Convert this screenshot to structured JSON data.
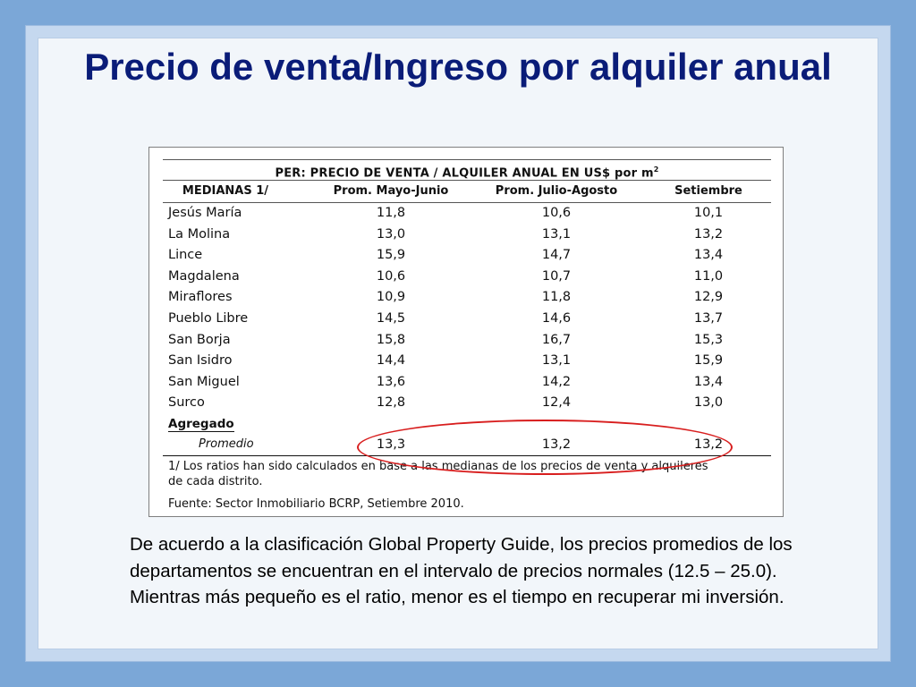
{
  "slide": {
    "title": "Precio de venta/Ingreso por alquiler anual",
    "body": "De acuerdo a la clasificación Global Property Guide, los precios promedios de los departamentos se encuentran en el intervalo de precios normales (12.5 – 25.0). Mientras más pequeño es el ratio, menor es el tiempo en recuperar mi inversión."
  },
  "table": {
    "title": "PER: PRECIO DE VENTA / ALQUILER ANUAL EN US$ por m",
    "title_superscript": "2",
    "columns": [
      "MEDIANAS 1/",
      "Prom. Mayo-Junio",
      "Prom. Julio-Agosto",
      "Setiembre"
    ],
    "rows": [
      [
        "Jesús María",
        "11,8",
        "10,6",
        "10,1"
      ],
      [
        "La Molina",
        "13,0",
        "13,1",
        "13,2"
      ],
      [
        "Lince",
        "15,9",
        "14,7",
        "13,4"
      ],
      [
        "Magdalena",
        "10,6",
        "10,7",
        "11,0"
      ],
      [
        "Miraflores",
        "10,9",
        "11,8",
        "12,9"
      ],
      [
        "Pueblo Libre",
        "14,5",
        "14,6",
        "13,7"
      ],
      [
        "San Borja",
        "15,8",
        "16,7",
        "15,3"
      ],
      [
        "San Isidro",
        "14,4",
        "13,1",
        "15,9"
      ],
      [
        "San Miguel",
        "13,6",
        "14,2",
        "13,4"
      ],
      [
        "Surco",
        "12,8",
        "12,4",
        "13,0"
      ]
    ],
    "aggregate_label": "Agregado",
    "average_row": [
      "Promedio",
      "13,3",
      "13,2",
      "13,2"
    ],
    "note": "1/ Los ratios han sido calculados en base a las medianas de los precios de venta y alquileres de cada distrito.",
    "source": "Fuente: Sector Inmobiliario BCRP, Setiembre 2010."
  },
  "colors": {
    "background": "#7ba7d7",
    "title": "#0a1c78",
    "highlight": "#d81e1e"
  }
}
